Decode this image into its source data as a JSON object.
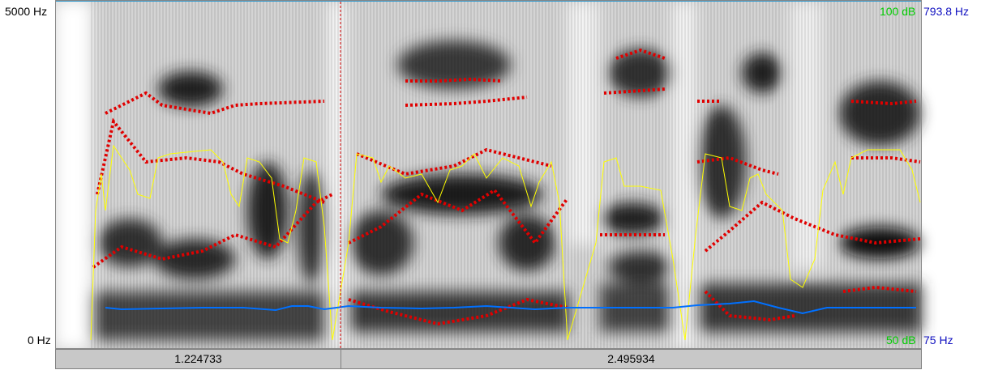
{
  "frequency_axis": {
    "top": "5000 Hz",
    "bottom": "0 Hz"
  },
  "intensity_axis": {
    "top": "100 dB",
    "bottom": "50 dB"
  },
  "pitch_axis": {
    "top": "793.8 Hz",
    "bottom": "75 Hz"
  },
  "selection": {
    "left_duration": "1.224733",
    "right_duration": "2.495934"
  }
}
